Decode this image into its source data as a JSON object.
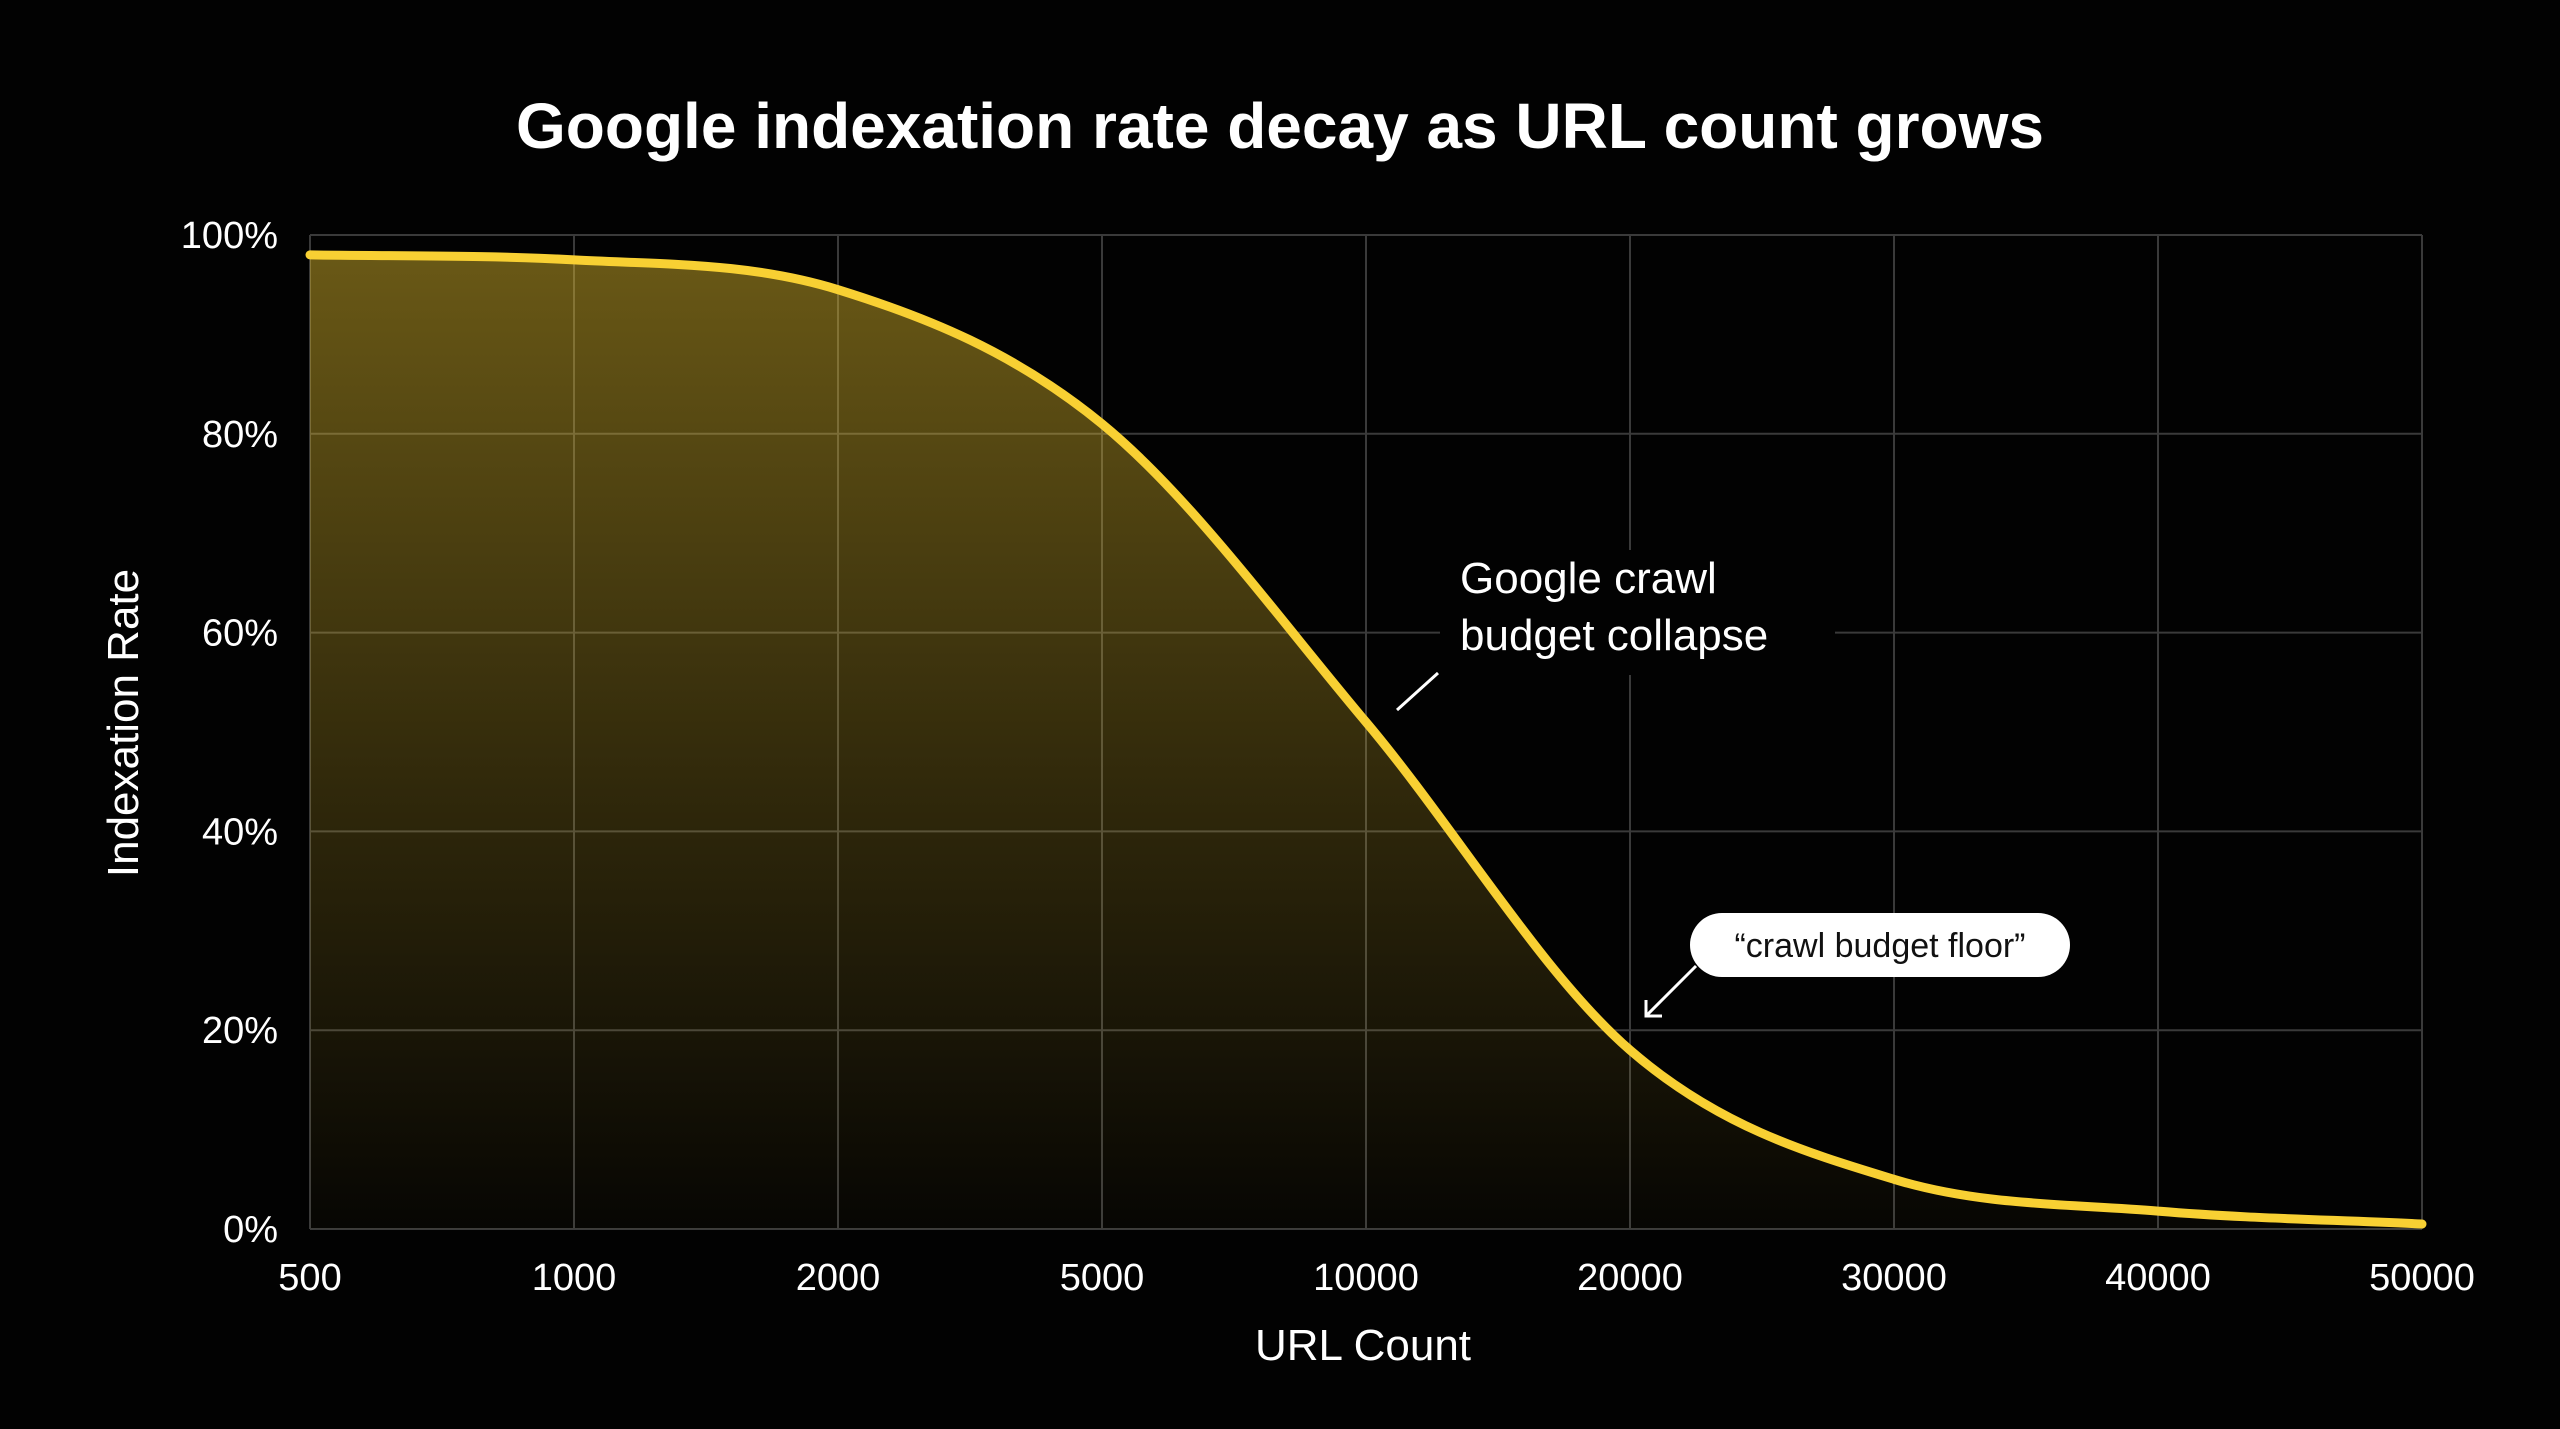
{
  "chart_data": {
    "type": "area",
    "title": "Google indexation rate decay as URL count grows",
    "xlabel": "URL Count",
    "ylabel": "Indexation Rate",
    "x_ticks": [
      "500",
      "1000",
      "2000",
      "5000",
      "10000",
      "20000",
      "30000",
      "40000",
      "50000"
    ],
    "y_ticks": [
      "0%",
      "20%",
      "40%",
      "60%",
      "80%",
      "100%"
    ],
    "ylim": [
      0,
      100
    ],
    "grid": true,
    "series": [
      {
        "x": [
          500,
          1000,
          2000,
          5000,
          10000,
          20000,
          30000,
          40000,
          50000
        ],
        "y": [
          98,
          97.5,
          94.5,
          81,
          51,
          18,
          5,
          1.8,
          0.5
        ]
      }
    ],
    "annotations": [
      {
        "text": "Google crawl budget collapse",
        "lines": [
          "Google crawl",
          "budget collapse"
        ],
        "x": 10000,
        "y": 51
      },
      {
        "text": "“crawl budget floor”",
        "x": 20000,
        "y": 18
      }
    ],
    "colors": {
      "background": "#020202",
      "line": "#f8d033",
      "fill": "#e8c22e",
      "grid": "#3a3a3a",
      "text": "#ffffff",
      "callout_bg": "#ffffff",
      "callout_text": "#111111"
    }
  }
}
